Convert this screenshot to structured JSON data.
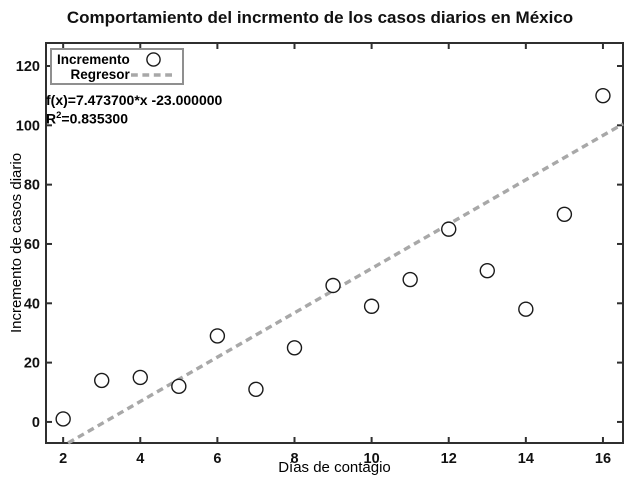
{
  "chart_data": {
    "type": "scatter",
    "title": "Comportamiento del incrmento de los casos diarios en México",
    "xlabel": "Días de contagio",
    "ylabel": "Incremento de casos diario",
    "series": [
      {
        "name": "Incremento",
        "type": "scatter",
        "x": [
          2,
          3,
          4,
          5,
          6,
          7,
          8,
          9,
          10,
          11,
          12,
          13,
          14,
          15,
          16
        ],
        "y": [
          1,
          14,
          15,
          12,
          29,
          11,
          25,
          46,
          39,
          48,
          65,
          51,
          38,
          70,
          110
        ]
      },
      {
        "name": "Regresor",
        "type": "line",
        "style": "dashed",
        "slope": 7.4737,
        "intercept": -23
      }
    ],
    "annotations": {
      "equation": "f(x)=7.473700*x -23.000000",
      "r2_base": "R",
      "r2_sup": "2",
      "r2_rest": "=0.835300"
    },
    "r_squared": 0.8353,
    "xlim": [
      1.555,
      16.52
    ],
    "ylim": [
      -7.1,
      127.75
    ],
    "xticks": [
      2,
      4,
      6,
      8,
      10,
      12,
      14,
      16
    ],
    "yticks": [
      0,
      20,
      40,
      60,
      80,
      100,
      120
    ],
    "grid": false,
    "legend_position": "upper-left",
    "legend": [
      "Incremento",
      "Regresor"
    ],
    "colors": {
      "marker_stroke": "#1a1a1a",
      "marker_fill": "#ffffff",
      "regression_line": "#a8a8a8",
      "axis_frame": "#2f2f2f",
      "legend_border": "#8f8f8f",
      "text": "#000000"
    }
  }
}
